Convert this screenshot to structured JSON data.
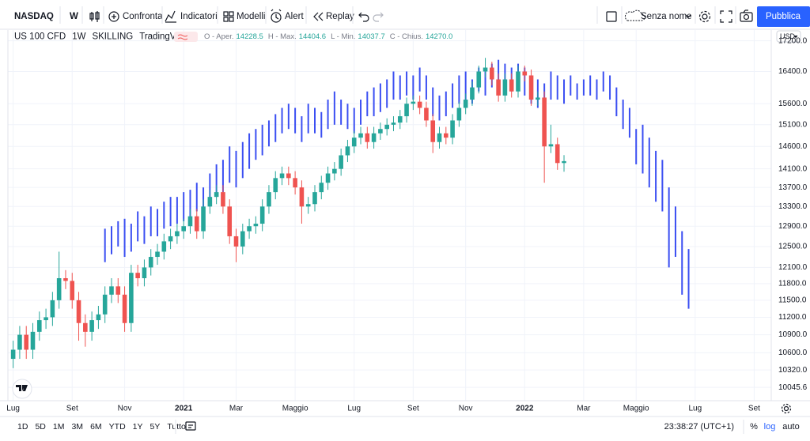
{
  "toolbar": {
    "symbol": "NASDAQ",
    "interval": "W",
    "buttons": [
      "Confronta",
      "Indicatori",
      "Modelli",
      "Alert",
      "Replay"
    ],
    "layout_name": "Senza nome",
    "publish": "Pubblica"
  },
  "legend": {
    "symbol": "US 100 CFD",
    "interval": "1W",
    "broker": "SKILLING",
    "source": "TradingView",
    "fields": [
      "O - Aper.",
      "H - Max.",
      "L - Min.",
      "C - Chius."
    ],
    "close_label": "14270.0"
  },
  "currency": "USD",
  "footer": {
    "ranges": [
      "1D",
      "5D",
      "1M",
      "3M",
      "6M",
      "YTD",
      "1Y",
      "5Y",
      "Tutto"
    ],
    "clock": "23:38:27 (UTC+1)",
    "percent": "%",
    "log": "log",
    "auto": "auto"
  },
  "chart_data": {
    "type": "candlestick",
    "log_scale": true,
    "grid": true,
    "xlim": [
      -0.8,
      115.6
    ],
    "xticks": [
      {
        "value": 0,
        "label": "Lug"
      },
      {
        "value": 9,
        "label": "Set"
      },
      {
        "value": 17,
        "label": "Nov"
      },
      {
        "value": 26,
        "label": "2021"
      },
      {
        "value": 34,
        "label": "Mar"
      },
      {
        "value": 43,
        "label": "Maggio"
      },
      {
        "value": 52,
        "label": "Lug"
      },
      {
        "value": 61,
        "label": "Set"
      },
      {
        "value": 69,
        "label": "Nov"
      },
      {
        "value": 78,
        "label": "2022"
      },
      {
        "value": 87,
        "label": "Mar"
      },
      {
        "value": 95,
        "label": "Maggio"
      },
      {
        "value": 104,
        "label": "Lug"
      },
      {
        "value": 113,
        "label": "Set"
      }
    ],
    "ylim": [
      9840,
      17490
    ],
    "yticks": [
      10045.6,
      {
        "value": 10320,
        "label": "10320.0"
      },
      {
        "value": 10600,
        "label": "10600.0"
      },
      {
        "value": 10900,
        "label": "10900.0"
      },
      {
        "value": 11200,
        "label": "11200.0"
      },
      {
        "value": 11500,
        "label": "11500.0"
      },
      {
        "value": 11800,
        "label": "11800.0"
      },
      {
        "value": 12100,
        "label": "12100.0"
      },
      {
        "value": 12500,
        "label": "12500.0"
      },
      {
        "value": 12900,
        "label": "12900.0"
      },
      {
        "value": 13300,
        "label": "13300.0"
      },
      {
        "value": 13700,
        "label": "13700.0"
      },
      {
        "value": 14100,
        "label": "14100.0"
      },
      {
        "value": 14600,
        "label": "14600.0"
      },
      {
        "value": 15100,
        "label": "15100.0"
      },
      {
        "value": 15600,
        "label": "15600.0"
      },
      {
        "value": 16400,
        "label": "16400.0"
      },
      {
        "value": 17200,
        "label": "17200.0"
      }
    ],
    "candles": {
      "up_color": "#26a69a",
      "down_color": "#ef5350",
      "open": [
        10500,
        10650,
        10900,
        10650,
        10950,
        11150,
        11200,
        11500,
        11900,
        11850,
        11500,
        11100,
        10950,
        11150,
        11250,
        11600,
        11750,
        11600,
        11100,
        12000,
        11900,
        12100,
        12300,
        12400,
        12600,
        12700,
        12800,
        12900,
        13100,
        12800,
        13300,
        13500,
        13600,
        13300,
        12700,
        12500,
        12800,
        12900,
        12950,
        13300,
        13600,
        13900,
        14000,
        13900,
        13700,
        13300,
        13350,
        13600,
        13800,
        14000,
        14100,
        14400,
        14600,
        14800,
        14900,
        14700,
        14900,
        15000,
        15100,
        15150,
        15300,
        15600,
        15650,
        15500,
        15200,
        14700,
        14900,
        14800,
        15200,
        15500,
        15700,
        16000,
        16400,
        16500,
        16200,
        15800,
        16200,
        15900,
        16400,
        16300,
        15700,
        15750,
        14600,
        14650,
        14228.5
      ],
      "high": [
        10800,
        11050,
        11050,
        11100,
        11300,
        11350,
        11650,
        12400,
        12050,
        12000,
        11650,
        11250,
        11300,
        11400,
        11750,
        11900,
        11900,
        11750,
        12150,
        12150,
        12250,
        12450,
        12550,
        12750,
        12850,
        12950,
        13050,
        13250,
        13250,
        13450,
        13650,
        13750,
        13750,
        13450,
        12850,
        12950,
        13050,
        13100,
        13450,
        13750,
        14050,
        14150,
        14150,
        14050,
        13850,
        13500,
        13750,
        13950,
        14150,
        14250,
        14550,
        14750,
        14950,
        15050,
        15050,
        15050,
        15150,
        15250,
        15300,
        15450,
        15750,
        15800,
        15800,
        15650,
        15350,
        15050,
        15050,
        15350,
        15650,
        15850,
        16150,
        16550,
        16750,
        16650,
        16350,
        16350,
        16350,
        16550,
        16550,
        16450,
        15900,
        15900,
        15100,
        14800,
        14404.6
      ],
      "low": [
        10350,
        10500,
        10500,
        10500,
        10800,
        11000,
        11050,
        11350,
        11700,
        11350,
        10800,
        10700,
        10800,
        11000,
        11100,
        11450,
        11450,
        10950,
        10950,
        11750,
        11750,
        11950,
        12150,
        12250,
        12450,
        12550,
        12650,
        12750,
        12650,
        12650,
        13150,
        13350,
        13150,
        12550,
        12200,
        12350,
        12650,
        12750,
        12800,
        13150,
        13450,
        13750,
        13750,
        13550,
        12950,
        13150,
        13200,
        13450,
        13650,
        13850,
        13950,
        14250,
        14450,
        14650,
        14550,
        14550,
        14750,
        14850,
        14950,
        15000,
        15150,
        15450,
        15350,
        15050,
        14450,
        14550,
        14650,
        14650,
        15050,
        15350,
        15550,
        15850,
        16250,
        16050,
        15650,
        15650,
        15750,
        15750,
        16150,
        15550,
        15550,
        13800,
        14450,
        14080,
        14037.7
      ],
      "close": [
        10650,
        10900,
        10650,
        10950,
        11150,
        11200,
        11500,
        11900,
        11850,
        11500,
        11100,
        10950,
        11150,
        11250,
        11600,
        11750,
        11600,
        11100,
        12000,
        11900,
        12100,
        12300,
        12400,
        12600,
        12700,
        12800,
        12900,
        13100,
        12800,
        13300,
        13500,
        13600,
        13300,
        12700,
        12500,
        12800,
        12900,
        12950,
        13300,
        13600,
        13900,
        14000,
        13900,
        13700,
        13300,
        13350,
        13600,
        13800,
        14000,
        14100,
        14400,
        14600,
        14800,
        14900,
        14700,
        14900,
        15000,
        15100,
        15150,
        15300,
        15600,
        15650,
        15500,
        15200,
        14700,
        14900,
        14800,
        15200,
        15500,
        15700,
        16000,
        16400,
        16500,
        16200,
        15800,
        16200,
        15900,
        16400,
        16300,
        15700,
        15750,
        14600,
        14650,
        14228.5,
        14270
      ]
    },
    "bars": {
      "color": "#3b4ff2",
      "high": [
        null,
        null,
        null,
        null,
        null,
        null,
        null,
        null,
        null,
        null,
        null,
        null,
        null,
        null,
        12850,
        12900,
        13000,
        13050,
        12950,
        13200,
        13100,
        13300,
        13250,
        13400,
        13500,
        13500,
        13600,
        13650,
        13800,
        13700,
        14000,
        14200,
        14300,
        14600,
        14500,
        14700,
        14900,
        15000,
        15100,
        15200,
        15350,
        15500,
        15600,
        15500,
        15300,
        15600,
        15500,
        15400,
        15700,
        15900,
        15700,
        15600,
        15500,
        15700,
        15900,
        16000,
        16100,
        16200,
        16400,
        16300,
        16400,
        16300,
        16500,
        16300,
        16000,
        15800,
        15900,
        16100,
        16300,
        16400,
        16200,
        16500,
        16400,
        16600,
        16700,
        16600,
        16500,
        16600,
        16500,
        16300,
        16200,
        16100,
        16400,
        16300,
        16200,
        16300,
        16100,
        16200,
        16300,
        16200,
        16400,
        16300,
        16000,
        15700,
        15500,
        15000,
        15100,
        14800,
        14500,
        14300,
        13700,
        13300,
        12800,
        12450
      ],
      "low": [
        null,
        null,
        null,
        null,
        null,
        null,
        null,
        null,
        null,
        null,
        null,
        null,
        null,
        null,
        12200,
        12350,
        12500,
        12300,
        12400,
        12600,
        12550,
        12700,
        12700,
        12850,
        12900,
        12950,
        13000,
        13050,
        13200,
        13100,
        13300,
        13500,
        13600,
        13800,
        13700,
        13900,
        14100,
        14300,
        14400,
        14600,
        14700,
        14900,
        15000,
        14900,
        14700,
        14900,
        14900,
        14800,
        15000,
        15100,
        15100,
        15000,
        14900,
        15100,
        15300,
        15300,
        15400,
        15500,
        15700,
        15700,
        15800,
        15700,
        15900,
        15700,
        15300,
        15200,
        15300,
        15500,
        15600,
        15700,
        15600,
        15900,
        15800,
        16000,
        16100,
        16000,
        15900,
        16000,
        15800,
        15600,
        15500,
        15400,
        15700,
        15700,
        15600,
        15800,
        15700,
        15800,
        15800,
        15700,
        15900,
        15700,
        15300,
        15000,
        14800,
        14200,
        14000,
        13700,
        13400,
        13200,
        12100,
        12300,
        11600,
        11350
      ]
    }
  }
}
